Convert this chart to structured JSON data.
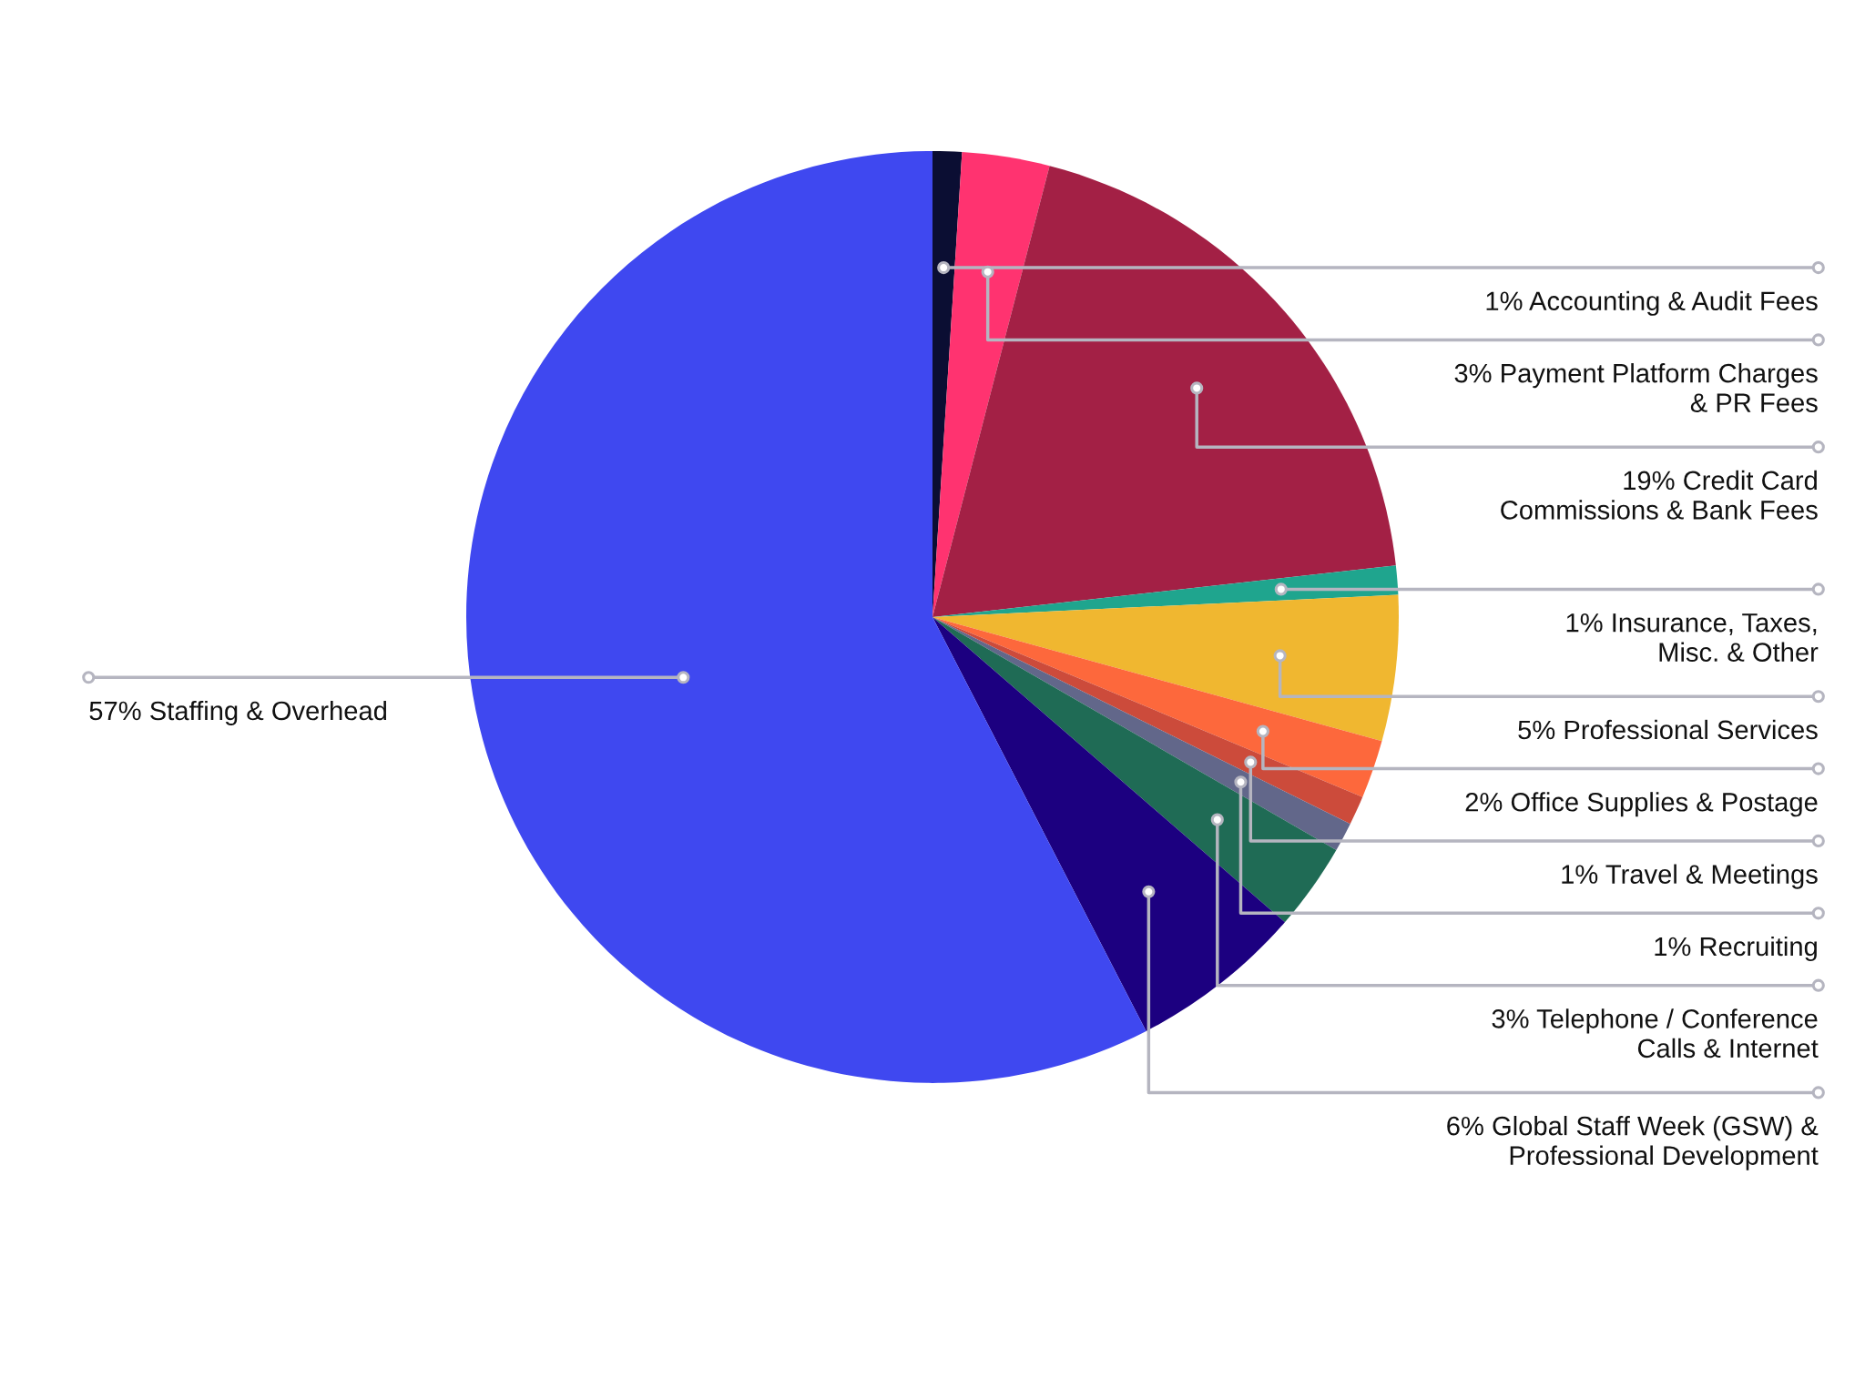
{
  "chart_data": {
    "type": "pie",
    "categories": [
      "Accounting & Audit Fees",
      "Payment Platform Charges\n& PR Fees",
      "Credit Card\nCommissions & Bank Fees",
      "Insurance, Taxes,\nMisc. & Other",
      "Professional Services",
      "Office Supplies & Postage",
      "Travel & Meetings",
      "Recruiting",
      "Telephone / Conference\nCalls & Internet",
      "Global Staff Week (GSW) &\nProfessional Development",
      "Staffing & Overhead"
    ],
    "values": [
      1,
      3,
      19,
      1,
      5,
      2,
      1,
      1,
      3,
      6,
      57
    ],
    "value_labels": [
      "1%",
      "3%",
      "19%",
      "1%",
      "5%",
      "2%",
      "1%",
      "1%",
      "3%",
      "6%",
      "57%"
    ],
    "colors": [
      "#0b0e33",
      "#ff3370",
      "#a32045",
      "#1fa58e",
      "#f0b730",
      "#fd683c",
      "#cc4b3b",
      "#62678a",
      "#1f6b55",
      "#1c0080",
      "#3f48f0"
    ]
  }
}
